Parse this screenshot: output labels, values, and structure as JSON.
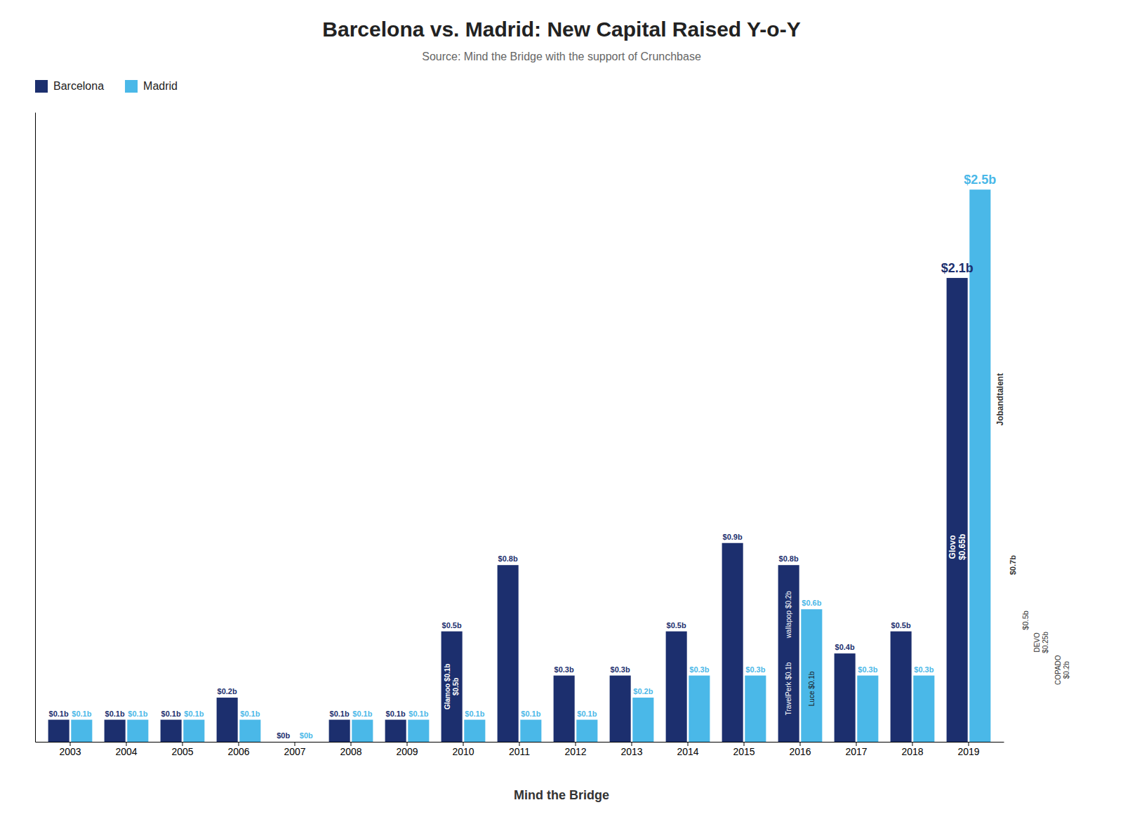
{
  "chart_data": {
    "type": "bar",
    "title": "Barcelona vs. Madrid: New Capital Raised Y-o-Y",
    "subtitle": "Source: Mind the Bridge with the support of Crunchbase",
    "categories": [
      "2003",
      "2004",
      "2005",
      "2006",
      "2007",
      "2008",
      "2009",
      "2010",
      "2011",
      "2012",
      "2013",
      "2014",
      "2015",
      "2016",
      "2017",
      "2018",
      "2019"
    ],
    "series": [
      {
        "name": "Barcelona",
        "color": "#1c2f6e",
        "values": [
          0.1,
          0.1,
          0.1,
          0.2,
          0.0,
          0.1,
          0.1,
          0.5,
          0.8,
          0.3,
          0.3,
          0.5,
          0.9,
          0.8,
          0.4,
          0.5,
          2.1
        ],
        "value_labels": [
          "$0.1b",
          "$0.1b",
          "$0.1b",
          "$0.2b",
          "$0b",
          "$0.1b",
          "$0.1b",
          "$0.5b",
          "$0.8b",
          "$0.3b",
          "$0.3b",
          "$0.5b",
          "$0.9b",
          "$0.8b",
          "$0.4b",
          "$0.5b",
          "$2.1b"
        ]
      },
      {
        "name": "Madrid",
        "color": "#4ab8e8",
        "values": [
          0.1,
          0.1,
          0.1,
          0.1,
          0.0,
          0.1,
          0.1,
          0.1,
          0.1,
          0.1,
          0.2,
          0.3,
          0.3,
          0.6,
          0.3,
          0.3,
          2.5
        ],
        "value_labels": [
          "$0.1b",
          "$0.1b",
          "$0.1b",
          "$0.1b",
          "$0b",
          "$0.1b",
          "$0.1b",
          "$0.1b",
          "$0.1b",
          "$0.1b",
          "$0.2b",
          "$0.3b",
          "$0.3b",
          "$0.6b",
          "$0.3b",
          "$0.3b",
          "$2.5b"
        ]
      }
    ],
    "ylim": [
      0,
      2.85
    ],
    "tick_labels": "x",
    "grid": false,
    "data_labels": true,
    "legend": "top-left",
    "annotations": [
      "Glamoo $0.1b\n$0.5b",
      "Glovo\n$0.65b",
      "wallapop  $0.2b",
      "TravelPerk  $0.1b",
      "Luce  $0.1b",
      "Jobandtalent",
      "$0.7b",
      "$0.5b",
      "DEVO\n$0.25b",
      "COPADO\n$0.2b",
      "Mind the Bridge"
    ]
  }
}
